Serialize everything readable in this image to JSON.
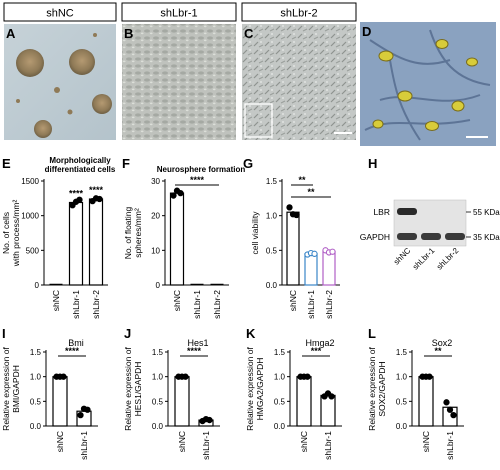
{
  "panels": {
    "A": {
      "letter": "A",
      "header": "shNC"
    },
    "B": {
      "letter": "B",
      "header": "shLbr-1"
    },
    "C": {
      "letter": "C",
      "header": "shLbr-2"
    },
    "D": {
      "letter": "D"
    },
    "E": {
      "letter": "E"
    },
    "F": {
      "letter": "F"
    },
    "G": {
      "letter": "G"
    },
    "H": {
      "letter": "H"
    },
    "I": {
      "letter": "I"
    },
    "J": {
      "letter": "J"
    },
    "K": {
      "letter": "K"
    },
    "L": {
      "letter": "L"
    }
  },
  "western_blot": {
    "bands": [
      "LBR",
      "GAPDH"
    ],
    "markers": [
      "55 KDa",
      "35 KDa"
    ],
    "lanes": [
      "shNC",
      "shLbr-1",
      "shLbr-2"
    ]
  },
  "chart_data": [
    {
      "id": "E",
      "type": "bar",
      "title": "Morphologically differentiated cells",
      "title_lines": [
        "Morphologically",
        "differentiated cells"
      ],
      "ylabel_lines": [
        "No. of cells",
        "with process/mm²"
      ],
      "categories": [
        "shNC",
        "shLbr-1",
        "shLbr-2"
      ],
      "values": [
        0,
        1190,
        1240
      ],
      "points": [
        [
          0,
          0,
          0
        ],
        [
          1150,
          1200,
          1230
        ],
        [
          1210,
          1250,
          1240
        ]
      ],
      "bar_colors": [
        "#000000",
        "#000000",
        "#000000"
      ],
      "ylim": [
        0,
        1500
      ],
      "yticks": [
        "0",
        "500",
        "1000",
        "1500"
      ],
      "ytick_values": [
        0,
        500,
        1000,
        1500
      ],
      "significance": [
        {
          "label": "****",
          "over": 1
        },
        {
          "label": "****",
          "over": 2
        }
      ]
    },
    {
      "id": "F",
      "type": "bar",
      "title": "Neurosphere formation",
      "title_lines": [
        "Neurosphere formation"
      ],
      "ylabel_lines": [
        "No. of floating",
        "spheres/mm²"
      ],
      "categories": [
        "shNC",
        "shLbr-1",
        "shLbr-2"
      ],
      "values": [
        26.5,
        0,
        0
      ],
      "points": [
        [
          25.8,
          27.2,
          26.5
        ],
        [
          0,
          0,
          0
        ],
        [
          0,
          0,
          0
        ]
      ],
      "bar_colors": [
        "#000000",
        "#000000",
        "#000000"
      ],
      "ylim": [
        0,
        30
      ],
      "yticks": [
        "0",
        "10",
        "20",
        "30"
      ],
      "ytick_values": [
        0,
        10,
        20,
        30
      ],
      "significance": [
        {
          "label": "****",
          "from": 0,
          "to": 2
        }
      ]
    },
    {
      "id": "G",
      "type": "bar",
      "title_lines": [],
      "ylabel_lines": [
        "cell viability"
      ],
      "categories": [
        "shNC",
        "shLbr-1",
        "shLbr-2"
      ],
      "values": [
        1.05,
        0.45,
        0.48
      ],
      "points": [
        [
          1.12,
          1.02,
          1.01
        ],
        [
          0.44,
          0.46,
          0.45
        ],
        [
          0.5,
          0.47,
          0.48
        ]
      ],
      "bar_colors": [
        "#000000",
        "#3a86c8",
        "#b05fc6"
      ],
      "ylim": [
        0,
        1.5
      ],
      "yticks": [
        "0.0",
        "0.5",
        "1.0",
        "1.5"
      ],
      "ytick_values": [
        0,
        0.5,
        1.0,
        1.5
      ],
      "significance": [
        {
          "label": "**",
          "from": 0,
          "to": 1
        },
        {
          "label": "**",
          "from": 0,
          "to": 2
        }
      ]
    },
    {
      "id": "I",
      "type": "bar",
      "title_lines": [
        "Bmi"
      ],
      "ylabel_lines": [
        "Relative expression of",
        "BMI/GAPDH"
      ],
      "categories": [
        "shNC",
        "shLbr-1"
      ],
      "values": [
        1.0,
        0.3
      ],
      "points": [
        [
          1.0,
          1.0,
          1.0
        ],
        [
          0.22,
          0.35,
          0.33
        ]
      ],
      "bar_colors": [
        "#000000",
        "#000000"
      ],
      "ylim": [
        0,
        1.5
      ],
      "yticks": [
        "0.0",
        "0.5",
        "1.0",
        "1.5"
      ],
      "ytick_values": [
        0,
        0.5,
        1.0,
        1.5
      ],
      "significance": [
        {
          "label": "****",
          "from": 0,
          "to": 1
        }
      ]
    },
    {
      "id": "J",
      "type": "bar",
      "title_lines": [
        "Hes1"
      ],
      "ylabel_lines": [
        "Relative expression of",
        "HES1/GAPDH"
      ],
      "categories": [
        "shNC",
        "shLbr-1"
      ],
      "values": [
        1.0,
        0.12
      ],
      "points": [
        [
          1.0,
          1.0,
          1.0
        ],
        [
          0.1,
          0.14,
          0.12
        ]
      ],
      "bar_colors": [
        "#000000",
        "#000000"
      ],
      "ylim": [
        0,
        1.5
      ],
      "yticks": [
        "0.0",
        "0.5",
        "1.0",
        "1.5"
      ],
      "ytick_values": [
        0,
        0.5,
        1.0,
        1.5
      ],
      "significance": [
        {
          "label": "****",
          "from": 0,
          "to": 1
        }
      ]
    },
    {
      "id": "K",
      "type": "bar",
      "title_lines": [
        "Hmga2"
      ],
      "ylabel_lines": [
        "Relative expression of",
        "HMGA2/GAPDH"
      ],
      "categories": [
        "shNC",
        "shLbr-1"
      ],
      "values": [
        1.0,
        0.62
      ],
      "points": [
        [
          1.0,
          1.0,
          1.0
        ],
        [
          0.6,
          0.66,
          0.6
        ]
      ],
      "bar_colors": [
        "#000000",
        "#000000"
      ],
      "ylim": [
        0,
        1.5
      ],
      "yticks": [
        "0.0",
        "0.5",
        "1.0",
        "1.5"
      ],
      "ytick_values": [
        0,
        0.5,
        1.0,
        1.5
      ],
      "significance": [
        {
          "label": "***",
          "from": 0,
          "to": 1
        }
      ]
    },
    {
      "id": "L",
      "type": "bar",
      "title_lines": [
        "Sox2"
      ],
      "ylabel_lines": [
        "Relative expression of",
        "SOX2/GAPDH"
      ],
      "categories": [
        "shNC",
        "shLbr-1"
      ],
      "values": [
        1.0,
        0.38
      ],
      "points": [
        [
          1.0,
          1.0,
          1.0
        ],
        [
          0.48,
          0.33,
          0.22
        ]
      ],
      "bar_colors": [
        "#000000",
        "#000000"
      ],
      "ylim": [
        0,
        1.5
      ],
      "yticks": [
        "0.0",
        "0.5",
        "1.0",
        "1.5"
      ],
      "ytick_values": [
        0,
        0.5,
        1.0,
        1.5
      ],
      "significance": [
        {
          "label": "**",
          "from": 0,
          "to": 1
        }
      ]
    }
  ]
}
